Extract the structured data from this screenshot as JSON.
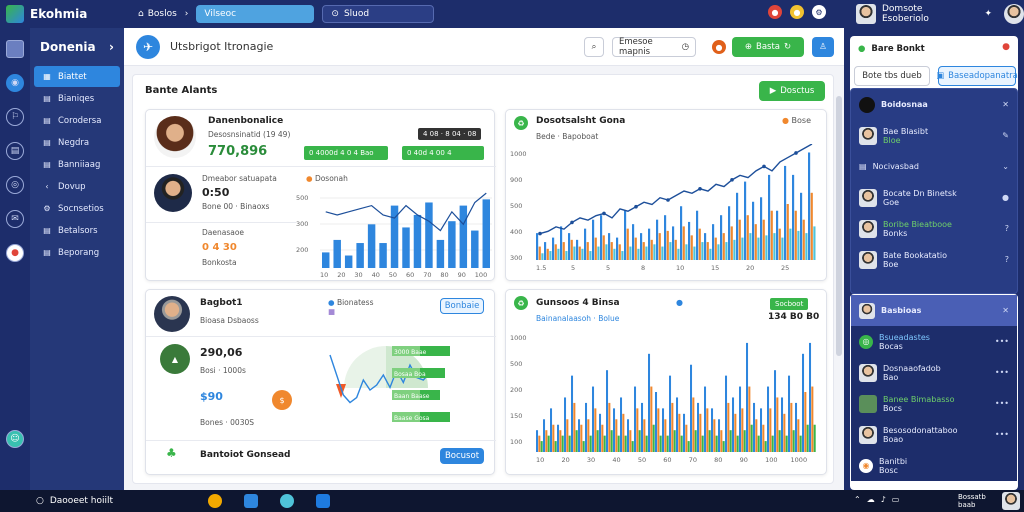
{
  "app": {
    "name": "Ekohmia"
  },
  "topnav": {
    "home": "Boslos",
    "tab_active": "Vilseoc",
    "tab_second": "Sluod"
  },
  "topuser": {
    "name": "Domsote Esoberiolo"
  },
  "sidebar": {
    "title": "Donenia",
    "items": [
      {
        "label": "Biattet",
        "icon": "grid-icon"
      },
      {
        "label": "Bianiqes",
        "icon": "doc-icon"
      },
      {
        "label": "Corodersa",
        "icon": "doc-icon"
      },
      {
        "label": "Negdra",
        "icon": "doc-icon"
      },
      {
        "label": "Banniiaag",
        "icon": "doc-icon"
      },
      {
        "label": "Dovup",
        "icon": "share-icon"
      },
      {
        "label": "Socnsetios",
        "icon": "gear-icon"
      },
      {
        "label": "Betalsors",
        "icon": "doc-icon"
      },
      {
        "label": "Beporang",
        "icon": "doc-icon"
      }
    ]
  },
  "header": {
    "title": "Utsbrigot Itronagie",
    "search_label": "Emesoe mapnis",
    "action_button": "Basta",
    "panel_title": "Bante Alants",
    "panel_button": "Dosctus"
  },
  "card1": {
    "title": "Danenbonalice",
    "subtitle": "Desosnsinatid (19 49)",
    "badge": "4 08 · 8 04 · 08",
    "value": "770,896",
    "btn_green": "0 4000d 4 0 4 Bao",
    "btn_outline": "0 40d 4 00 4",
    "person_label": "Dmeabor satuapata",
    "person_value": "0:50",
    "person_sub": "Bone 00 · Binaoxs",
    "donation_label": "Daenasaoe",
    "donation_value": "0 4 30",
    "donation_sub": "Bonkosta",
    "chart_legend": "Dosonah"
  },
  "card2": {
    "title": "Dosotsalsht Gona",
    "sub": "Bede · Bapoboat"
  },
  "card3": {
    "title": "Bagbot1",
    "sub": "Bioasa Dsbaoss",
    "legend_a": "Bionatess",
    "button": "Bonbaie",
    "stat1": "290,06",
    "stat1_sub": "Bosi · 1000s",
    "stat2": "$90",
    "stat2_sub": "Bones · 0030S",
    "footer": "Bantoiot Gonsead",
    "footer_button": "Bocusot"
  },
  "card4": {
    "title": "Gunsoos 4 Binsa",
    "sub": "Bainanalaasoh · Bolue",
    "badge": "Socboot",
    "value": "134 B0 B0"
  },
  "rightpanel": {
    "top_title": "Bare Bonkt",
    "top_field": "Bote tbs dueb",
    "top_button": "Baseadopanatra",
    "sec1_title": "Boidosnaa",
    "sec1_rows": [
      {
        "name": "Bae Blasibt",
        "sub": "Bloe"
      },
      {
        "name": "Nocivasbad",
        "sub": ""
      },
      {
        "name": "Bocate Dn Binetsk",
        "sub": "Goe"
      },
      {
        "name": "Boribe Bieatbooe",
        "sub": "Bonks"
      },
      {
        "name": "Bate Bookatatio",
        "sub": "Boe"
      }
    ],
    "sec2_title": "Basbioas",
    "sec2_rows": [
      {
        "name": "Bsueadastes",
        "sub": "Bocas"
      },
      {
        "name": "Dosnaaofadob",
        "sub": "Bao"
      },
      {
        "name": "Banee Bimabasso",
        "sub": "Bocs"
      },
      {
        "name": "Besosodonattaboo",
        "sub": "Boao"
      },
      {
        "name": "Banitbi",
        "sub": "Bosc"
      }
    ]
  },
  "taskbar": {
    "search": "Daooeet hoiilt",
    "tray_text": "Bossatb baab"
  },
  "colors": {
    "navy": "#1d2d6b",
    "blue": "#2e86de",
    "orange": "#f0882e",
    "green": "#39b54a",
    "cyan": "#4fc3d9"
  },
  "chart_data": [
    {
      "type": "bar",
      "title": "",
      "x": [
        1,
        2,
        3,
        4,
        5,
        6,
        7,
        8,
        9,
        10,
        11,
        12,
        13,
        14,
        15
      ],
      "series": [
        {
          "name": "Dosonah",
          "values": [
            5,
            9,
            4,
            8,
            14,
            8,
            20,
            13,
            17,
            21,
            9,
            15,
            20,
            12,
            22
          ]
        }
      ],
      "line": [
        18,
        17,
        18,
        19,
        20,
        17,
        16,
        20,
        17,
        15,
        12,
        18,
        14,
        21,
        24
      ],
      "yticks": [
        "500",
        "300",
        "200"
      ],
      "xticks": [
        "10",
        "20",
        "30",
        "40",
        "50",
        "60",
        "70",
        "80",
        "90",
        "100"
      ]
    },
    {
      "type": "bar",
      "title": "Dosotsalsht Gona",
      "categories": [
        "1",
        "2",
        "3",
        "4",
        "5",
        "6",
        "7",
        "8",
        "9",
        "10",
        "11",
        "12",
        "13",
        "14",
        "15",
        "16",
        "17",
        "18",
        "19",
        "20",
        "21",
        "22",
        "23",
        "24",
        "25",
        "26",
        "27",
        "28",
        "29",
        "30",
        "31",
        "32",
        "33",
        "34",
        "35"
      ],
      "series": [
        {
          "name": "blue",
          "values": [
            12,
            8,
            10,
            15,
            12,
            9,
            14,
            18,
            20,
            12,
            10,
            22,
            16,
            12,
            14,
            18,
            20,
            15,
            24,
            17,
            22,
            12,
            16,
            20,
            24,
            30,
            35,
            26,
            28,
            38,
            22,
            42,
            38,
            30,
            48
          ]
        },
        {
          "name": "orange",
          "values": [
            6,
            5,
            7,
            8,
            9,
            6,
            8,
            10,
            11,
            8,
            7,
            14,
            10,
            8,
            9,
            12,
            13,
            9,
            15,
            11,
            14,
            8,
            10,
            12,
            15,
            18,
            20,
            16,
            18,
            22,
            14,
            25,
            22,
            18,
            30
          ]
        },
        {
          "name": "cyan",
          "values": [
            3,
            4,
            5,
            4,
            6,
            5,
            4,
            6,
            7,
            5,
            4,
            6,
            5,
            6,
            7,
            6,
            8,
            5,
            7,
            6,
            8,
            5,
            7,
            8,
            9,
            10,
            12,
            10,
            11,
            12,
            10,
            14,
            13,
            12,
            15
          ]
        }
      ],
      "line": [
        10,
        11,
        13,
        12,
        15,
        17,
        16,
        18,
        19,
        17,
        21,
        20,
        22,
        24,
        23,
        26,
        25,
        27,
        29,
        28,
        30,
        29,
        32,
        31,
        34,
        36,
        35,
        38,
        40,
        38,
        42,
        44,
        46,
        48,
        50
      ],
      "yticks": [
        "1000",
        "900",
        "500",
        "400",
        "300"
      ],
      "xticks": [
        "1.5",
        "5",
        "5",
        "8",
        "10",
        "15",
        "20",
        "25"
      ]
    },
    {
      "type": "line",
      "title": "",
      "x": [
        1,
        2,
        3,
        4,
        5,
        6,
        7,
        8,
        9,
        10,
        11,
        12,
        13,
        14,
        15,
        16,
        17,
        18
      ],
      "y": [
        22,
        14,
        6,
        3,
        5,
        12,
        8,
        10,
        14,
        9,
        16,
        11,
        18,
        13,
        12,
        15,
        14,
        15
      ],
      "bars": [
        {
          "label": "3000 Baae",
          "value": 6
        },
        {
          "label": "Bosaa Boa",
          "value": 5
        },
        {
          "label": "Baan Baase",
          "value": 4
        },
        {
          "label": "Baase Gosa",
          "value": 6
        }
      ]
    },
    {
      "type": "bar",
      "title": "Gunsoos 4 Binsa",
      "categories": [
        "1",
        "2",
        "3",
        "4",
        "5",
        "6",
        "7",
        "8",
        "9",
        "10",
        "11",
        "12",
        "13",
        "14",
        "15",
        "16",
        "17",
        "18",
        "19",
        "20",
        "21",
        "22",
        "23",
        "24",
        "25",
        "26",
        "27",
        "28",
        "29",
        "30",
        "31",
        "32",
        "33",
        "34",
        "35",
        "36",
        "37",
        "38",
        "39",
        "40"
      ],
      "series": [
        {
          "name": "blue",
          "values": [
            4,
            6,
            8,
            5,
            10,
            14,
            6,
            9,
            12,
            7,
            15,
            8,
            10,
            6,
            12,
            9,
            18,
            11,
            8,
            14,
            10,
            7,
            16,
            9,
            12,
            8,
            6,
            14,
            10,
            12,
            20,
            9,
            8,
            12,
            15,
            10,
            14,
            9,
            18,
            20
          ]
        },
        {
          "name": "orange",
          "values": [
            3,
            4,
            5,
            4,
            6,
            9,
            5,
            6,
            8,
            5,
            9,
            6,
            7,
            4,
            8,
            6,
            12,
            8,
            6,
            9,
            7,
            5,
            10,
            7,
            8,
            6,
            4,
            9,
            7,
            8,
            12,
            6,
            5,
            8,
            10,
            7,
            9,
            6,
            11,
            12
          ]
        },
        {
          "name": "green",
          "values": [
            2,
            3,
            2,
            3,
            3,
            4,
            2,
            3,
            4,
            3,
            4,
            3,
            3,
            2,
            4,
            3,
            5,
            3,
            3,
            4,
            3,
            2,
            4,
            3,
            4,
            3,
            2,
            4,
            3,
            4,
            5,
            3,
            2,
            3,
            4,
            3,
            4,
            3,
            5,
            5
          ]
        }
      ],
      "yticks": [
        "1000",
        "500",
        "200",
        "150",
        "100"
      ],
      "xticks": [
        "10",
        "20",
        "30",
        "40",
        "50",
        "60",
        "70",
        "80",
        "90",
        "100",
        "1000"
      ]
    }
  ]
}
